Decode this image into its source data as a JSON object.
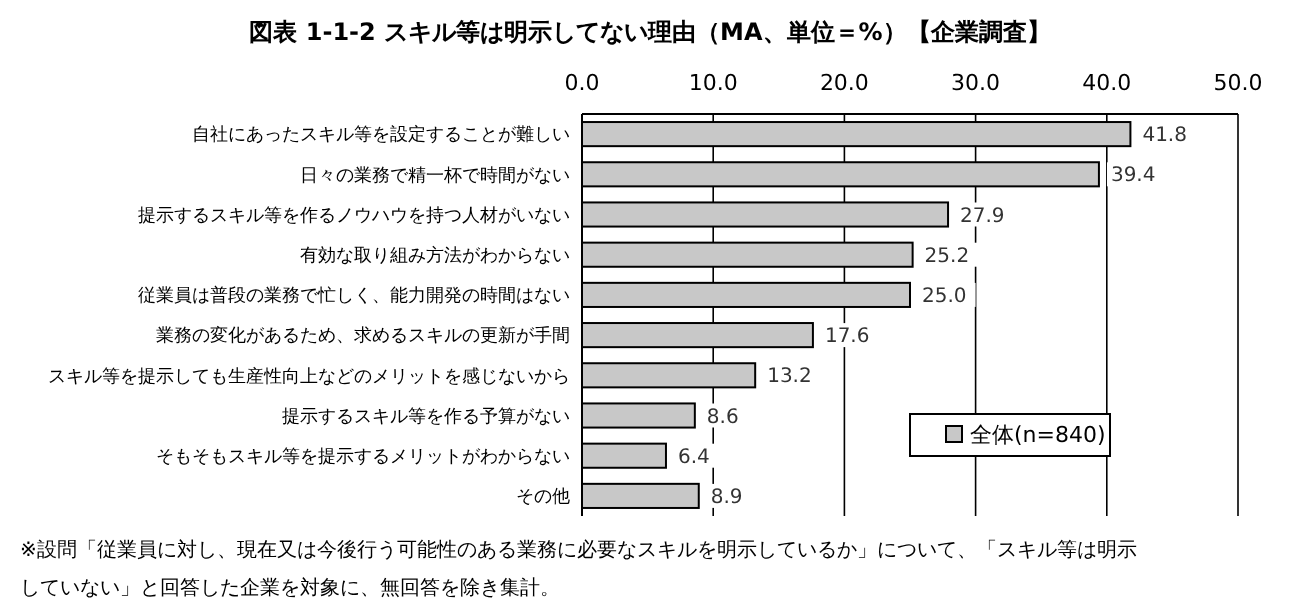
{
  "chart_data": {
    "type": "bar",
    "orientation": "horizontal",
    "title": "図表 1-1-2  スキル等は明示してない理由（MA、単位＝%）【企業調査】",
    "categories": [
      "自社にあったスキル等を設定することが難しい",
      "日々の業務で精一杯で時間がない",
      "提示するスキル等を作るノウハウを持つ人材がいない",
      "有効な取り組み方法がわからない",
      "従業員は普段の業務で忙しく、能力開発の時間はない",
      "業務の変化があるため、求めるスキルの更新が手間",
      "スキル等を提示しても生産性向上などのメリットを感じないから",
      "提示するスキル等を作る予算がない",
      "そもそもスキル等を提示するメリットがわからない",
      "その他"
    ],
    "series": [
      {
        "name": "全体(n=840)",
        "color": "#c8c8c8",
        "values": [
          41.8,
          39.4,
          27.9,
          25.2,
          25.0,
          17.6,
          13.2,
          8.6,
          6.4,
          8.9
        ],
        "value_labels": [
          "41.8",
          "39.4",
          "27.9",
          "25.2",
          "25.0",
          "17.6",
          "13.2",
          "8.6",
          "6.4",
          "8.9"
        ]
      }
    ],
    "xlim": [
      0,
      50
    ],
    "xticks": [
      {
        "value": 0,
        "label": "0.0"
      },
      {
        "value": 10,
        "label": "10.0"
      },
      {
        "value": 20,
        "label": "20.0"
      },
      {
        "value": 30,
        "label": "30.0"
      },
      {
        "value": 40,
        "label": "40.0"
      },
      {
        "value": 50,
        "label": "50.0"
      }
    ],
    "grid": "x",
    "legend": "bottom right",
    "annotations": [
      "※設問「従業員に対し、現在又は今後行う可能性のある業務に必要なスキルを明示しているか」について、「スキル等は明示していない」と回答した企業を対象に、無回答を除き集計。"
    ]
  }
}
